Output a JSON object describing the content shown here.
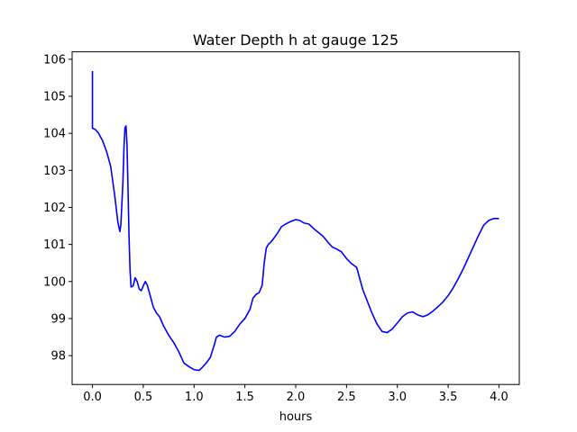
{
  "chart_data": {
    "type": "line",
    "title": "Water Depth h at gauge 125",
    "xlabel": "hours",
    "ylabel": "",
    "xlim": [
      -0.2,
      4.2
    ],
    "ylim": [
      97.22,
      106.2
    ],
    "grid": false,
    "xticks": [
      0.0,
      0.5,
      1.0,
      1.5,
      2.0,
      2.5,
      3.0,
      3.5,
      4.0
    ],
    "xtick_labels": [
      "0.0",
      "0.5",
      "1.0",
      "1.5",
      "2.0",
      "2.5",
      "3.0",
      "3.5",
      "4.0"
    ],
    "yticks": [
      98,
      99,
      100,
      101,
      102,
      103,
      104,
      105,
      106
    ],
    "ytick_labels": [
      "98",
      "99",
      "100",
      "101",
      "102",
      "103",
      "104",
      "105",
      "106"
    ],
    "series": [
      {
        "color": "#0000ff",
        "x": [
          0.0,
          0.0,
          0.0,
          0.03,
          0.06,
          0.1,
          0.14,
          0.18,
          0.22,
          0.25,
          0.27,
          0.28,
          0.3,
          0.31,
          0.32,
          0.33,
          0.34,
          0.35,
          0.36,
          0.37,
          0.38,
          0.4,
          0.42,
          0.44,
          0.46,
          0.48,
          0.5,
          0.52,
          0.54,
          0.57,
          0.6,
          0.63,
          0.66,
          0.7,
          0.75,
          0.8,
          0.85,
          0.9,
          0.95,
          1.0,
          1.05,
          1.08,
          1.12,
          1.16,
          1.2,
          1.22,
          1.25,
          1.3,
          1.35,
          1.4,
          1.45,
          1.5,
          1.55,
          1.58,
          1.61,
          1.64,
          1.67,
          1.69,
          1.71,
          1.73,
          1.75,
          1.78,
          1.82,
          1.86,
          1.9,
          1.95,
          2.0,
          2.04,
          2.08,
          2.13,
          2.18,
          2.22,
          2.27,
          2.32,
          2.36,
          2.4,
          2.45,
          2.5,
          2.55,
          2.6,
          2.63,
          2.66,
          2.7,
          2.75,
          2.8,
          2.85,
          2.9,
          2.95,
          3.0,
          3.05,
          3.1,
          3.15,
          3.2,
          3.25,
          3.3,
          3.35,
          3.4,
          3.45,
          3.5,
          3.55,
          3.6,
          3.65,
          3.7,
          3.75,
          3.8,
          3.85,
          3.9,
          3.95,
          4.0
        ],
        "y": [
          105.68,
          105.2,
          104.14,
          104.1,
          104.0,
          103.8,
          103.5,
          103.1,
          102.3,
          101.6,
          101.35,
          101.55,
          102.7,
          103.6,
          104.15,
          104.2,
          103.7,
          102.5,
          101.2,
          100.3,
          99.85,
          99.88,
          100.1,
          100.0,
          99.8,
          99.75,
          99.88,
          100.0,
          99.9,
          99.6,
          99.3,
          99.15,
          99.05,
          98.8,
          98.55,
          98.35,
          98.1,
          97.8,
          97.7,
          97.62,
          97.6,
          97.68,
          97.8,
          97.95,
          98.3,
          98.5,
          98.55,
          98.5,
          98.52,
          98.65,
          98.85,
          99.0,
          99.25,
          99.55,
          99.65,
          99.7,
          99.9,
          100.5,
          100.9,
          101.0,
          101.05,
          101.15,
          101.3,
          101.48,
          101.55,
          101.62,
          101.67,
          101.65,
          101.58,
          101.55,
          101.42,
          101.33,
          101.22,
          101.05,
          100.93,
          100.88,
          100.8,
          100.62,
          100.48,
          100.38,
          100.08,
          99.78,
          99.5,
          99.15,
          98.85,
          98.65,
          98.62,
          98.72,
          98.88,
          99.05,
          99.15,
          99.18,
          99.1,
          99.05,
          99.1,
          99.2,
          99.32,
          99.45,
          99.62,
          99.83,
          100.08,
          100.35,
          100.65,
          100.95,
          101.25,
          101.52,
          101.65,
          101.7,
          101.7
        ]
      }
    ]
  }
}
